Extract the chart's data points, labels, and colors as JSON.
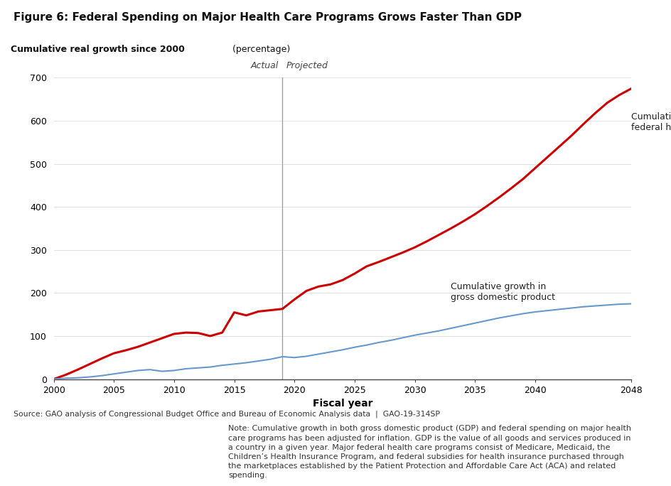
{
  "title": "Figure 6: Federal Spending on Major Health Care Programs Grows Faster Than GDP",
  "ylabel_bold": "Cumulative real growth since 2000",
  "ylabel_normal": " (percentage)",
  "xlabel": "Fiscal year",
  "ylim": [
    0,
    700
  ],
  "xlim": [
    2000,
    2048
  ],
  "yticks": [
    0,
    100,
    200,
    300,
    400,
    500,
    600,
    700
  ],
  "xticks": [
    2000,
    2005,
    2010,
    2015,
    2020,
    2025,
    2030,
    2035,
    2040,
    2048
  ],
  "divider_year": 2019,
  "actual_label": "Actual",
  "projected_label": "Projected",
  "health_label": "Cumulative growth in major\nfederal health programs",
  "gdp_label": "Cumulative growth in\ngross domestic product",
  "source_text": "Source: GAO analysis of Congressional Budget Office and Bureau of Economic Analysis data  |  GAO-19-314SP",
  "note_text": "Note: Cumulative growth in both gross domestic product (GDP) and federal spending on major health\ncare programs has been adjusted for inflation. GDP is the value of all goods and services produced in\na country in a given year. Major federal health care programs consist of Medicare, Medicaid, the\nChildren’s Health Insurance Program, and federal subsidies for health insurance purchased through\nthe marketplaces established by the Patient Protection and Affordable Care Act (ACA) and related\nspending.",
  "health_color": "#cc0000",
  "gdp_color": "#6699cc",
  "divider_color": "#999999",
  "background_color": "#ffffff",
  "health_years": [
    2000,
    2001,
    2002,
    2003,
    2004,
    2005,
    2006,
    2007,
    2008,
    2009,
    2010,
    2011,
    2012,
    2013,
    2014,
    2015,
    2016,
    2017,
    2018,
    2019,
    2020,
    2021,
    2022,
    2023,
    2024,
    2025,
    2026,
    2027,
    2028,
    2029,
    2030,
    2031,
    2032,
    2033,
    2034,
    2035,
    2036,
    2037,
    2038,
    2039,
    2040,
    2041,
    2042,
    2043,
    2044,
    2045,
    2046,
    2047,
    2048
  ],
  "health_values": [
    0,
    10,
    22,
    35,
    48,
    60,
    67,
    75,
    85,
    95,
    105,
    108,
    107,
    100,
    108,
    155,
    148,
    157,
    160,
    163,
    185,
    205,
    215,
    220,
    230,
    245,
    262,
    272,
    283,
    294,
    306,
    320,
    335,
    350,
    366,
    383,
    402,
    422,
    443,
    465,
    490,
    515,
    540,
    565,
    592,
    618,
    642,
    660,
    675
  ],
  "gdp_years": [
    2000,
    2001,
    2002,
    2003,
    2004,
    2005,
    2006,
    2007,
    2008,
    2009,
    2010,
    2011,
    2012,
    2013,
    2014,
    2015,
    2016,
    2017,
    2018,
    2019,
    2020,
    2021,
    2022,
    2023,
    2024,
    2025,
    2026,
    2027,
    2028,
    2029,
    2030,
    2031,
    2032,
    2033,
    2034,
    2035,
    2036,
    2037,
    2038,
    2039,
    2040,
    2041,
    2042,
    2043,
    2044,
    2045,
    2046,
    2047,
    2048
  ],
  "gdp_values": [
    0,
    2,
    3,
    5,
    8,
    12,
    16,
    20,
    22,
    18,
    20,
    24,
    26,
    28,
    32,
    35,
    38,
    42,
    46,
    52,
    50,
    53,
    58,
    63,
    68,
    74,
    79,
    85,
    90,
    96,
    102,
    107,
    112,
    118,
    124,
    130,
    136,
    142,
    147,
    152,
    156,
    159,
    162,
    165,
    168,
    170,
    172,
    174,
    175
  ]
}
